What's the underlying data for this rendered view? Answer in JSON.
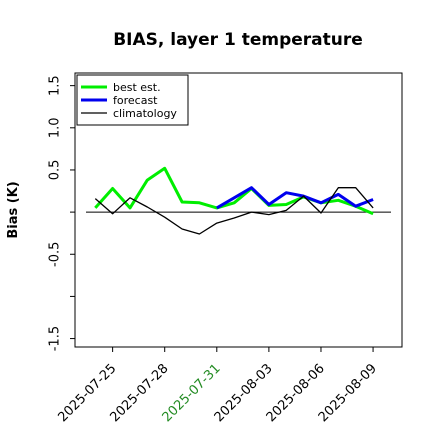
{
  "chart_data": {
    "type": "line",
    "title": "BIAS, layer 1 temperature",
    "xlabel": "",
    "ylabel": "Bias (K)",
    "ylim": [
      -1.6,
      1.65
    ],
    "yticks": [
      -1.5,
      -1.0,
      -0.5,
      0.0,
      0.5,
      1.0,
      1.5
    ],
    "ytick_labels": [
      "-1.5",
      "",
      "-0.5",
      "",
      "0.5",
      "1.0",
      "1.5"
    ],
    "x_range": [
      "2025-07-22T20:00",
      "2025-08-10T16:00"
    ],
    "x_ticks": [
      "2025-07-25",
      "2025-07-28",
      "2025-07-31",
      "2025-08-03",
      "2025-08-06",
      "2025-08-09"
    ],
    "highlight_tick": {
      "label": "2025-07-31",
      "color": "#228B22"
    },
    "zero_line": true,
    "grid": false,
    "legend": {
      "position": "top-left",
      "entries": [
        "best est.",
        "forecast",
        "climatology"
      ]
    },
    "series": [
      {
        "name": "best est.",
        "color": "#00ee00",
        "x": [
          "2025-07-24",
          "2025-07-25",
          "2025-07-26",
          "2025-07-27",
          "2025-07-28",
          "2025-07-29",
          "2025-07-30",
          "2025-07-31",
          "2025-08-01",
          "2025-08-02",
          "2025-08-03",
          "2025-08-04",
          "2025-08-05",
          "2025-08-06",
          "2025-08-07",
          "2025-08-08",
          "2025-08-09"
        ],
        "values": [
          0.05,
          0.28,
          0.05,
          0.38,
          0.52,
          0.12,
          0.11,
          0.05,
          0.11,
          0.28,
          0.08,
          0.09,
          0.18,
          0.11,
          0.14,
          0.07,
          -0.02
        ]
      },
      {
        "name": "forecast",
        "color": "#0000ee",
        "x": [
          "2025-07-31",
          "2025-08-01",
          "2025-08-02",
          "2025-08-03",
          "2025-08-04",
          "2025-08-05",
          "2025-08-06",
          "2025-08-07",
          "2025-08-08",
          "2025-08-09"
        ],
        "values": [
          0.05,
          0.17,
          0.29,
          0.09,
          0.23,
          0.19,
          0.11,
          0.21,
          0.07,
          0.15
        ]
      },
      {
        "name": "climatology",
        "color": "#000000",
        "x": [
          "2025-07-24",
          "2025-07-25",
          "2025-07-26",
          "2025-07-27",
          "2025-07-28",
          "2025-07-29",
          "2025-07-30",
          "2025-07-31",
          "2025-08-01",
          "2025-08-02",
          "2025-08-03",
          "2025-08-04",
          "2025-08-05",
          "2025-08-06",
          "2025-08-07",
          "2025-08-08",
          "2025-08-09"
        ],
        "values": [
          0.16,
          -0.02,
          0.17,
          0.06,
          -0.06,
          -0.2,
          -0.26,
          -0.13,
          -0.07,
          0.0,
          -0.03,
          0.02,
          0.19,
          -0.01,
          0.29,
          0.29,
          0.05
        ]
      }
    ]
  }
}
